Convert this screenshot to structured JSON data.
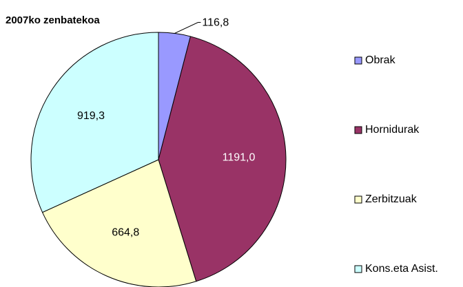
{
  "chart_data": {
    "type": "pie",
    "title": "2007ko zenbatekoa",
    "categories": [
      "Obrak",
      "Hornidurak",
      "Zerbitzuak",
      "Kons.eta Asist."
    ],
    "values": [
      116.8,
      1191.0,
      664.8,
      919.3
    ],
    "value_labels": [
      "116,8",
      "1191,0",
      "664,8",
      "919,3"
    ],
    "colors": [
      "#9999ff",
      "#993366",
      "#ffffcc",
      "#ccffff"
    ],
    "legend": "right"
  }
}
